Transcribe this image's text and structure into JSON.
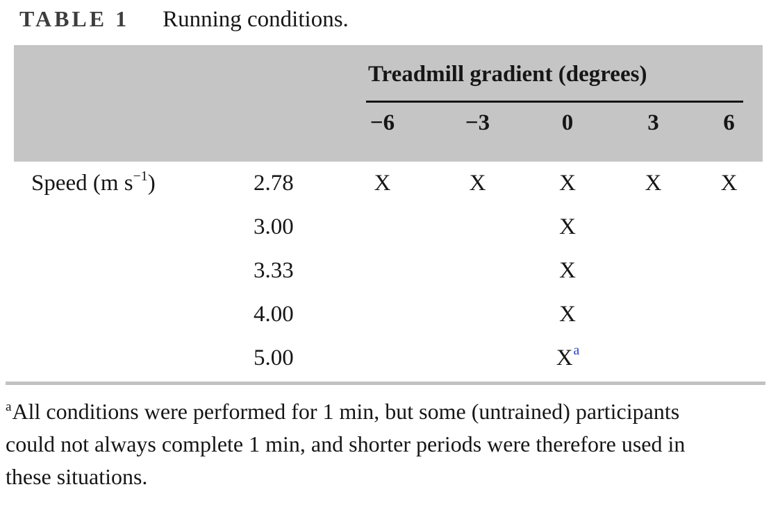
{
  "title": {
    "label": "TABLE 1",
    "caption": "Running conditions."
  },
  "table": {
    "group_header": "Treadmill gradient (degrees)",
    "row_header": "Speed (m s^−1^)",
    "columns": [
      "−6",
      "−3",
      "0",
      "3",
      "6"
    ],
    "rows": [
      {
        "speed": "2.78",
        "marks": [
          "X",
          "X",
          "X",
          "X",
          "X"
        ]
      },
      {
        "speed": "3.00",
        "marks": [
          "",
          "",
          "X",
          "",
          ""
        ]
      },
      {
        "speed": "3.33",
        "marks": [
          "",
          "",
          "X",
          "",
          ""
        ]
      },
      {
        "speed": "4.00",
        "marks": [
          "",
          "",
          "X",
          "",
          ""
        ]
      },
      {
        "speed": "5.00",
        "marks": [
          "",
          "",
          "X^a",
          "",
          ""
        ]
      }
    ]
  },
  "footnote": {
    "marker": "a",
    "lines": [
      "All conditions were performed for 1 min, but some (untrained) participants",
      "could not always complete 1 min, and shorter periods were therefore used in",
      "these situations."
    ]
  },
  "colors": {
    "header_bg": "#c5c5c5",
    "title_label": "#3d3d3d",
    "ink": "#161616",
    "footnote_ref": "#2b41c8",
    "bottom_rule": "#c1c1c1",
    "header_rule": "#151515"
  }
}
